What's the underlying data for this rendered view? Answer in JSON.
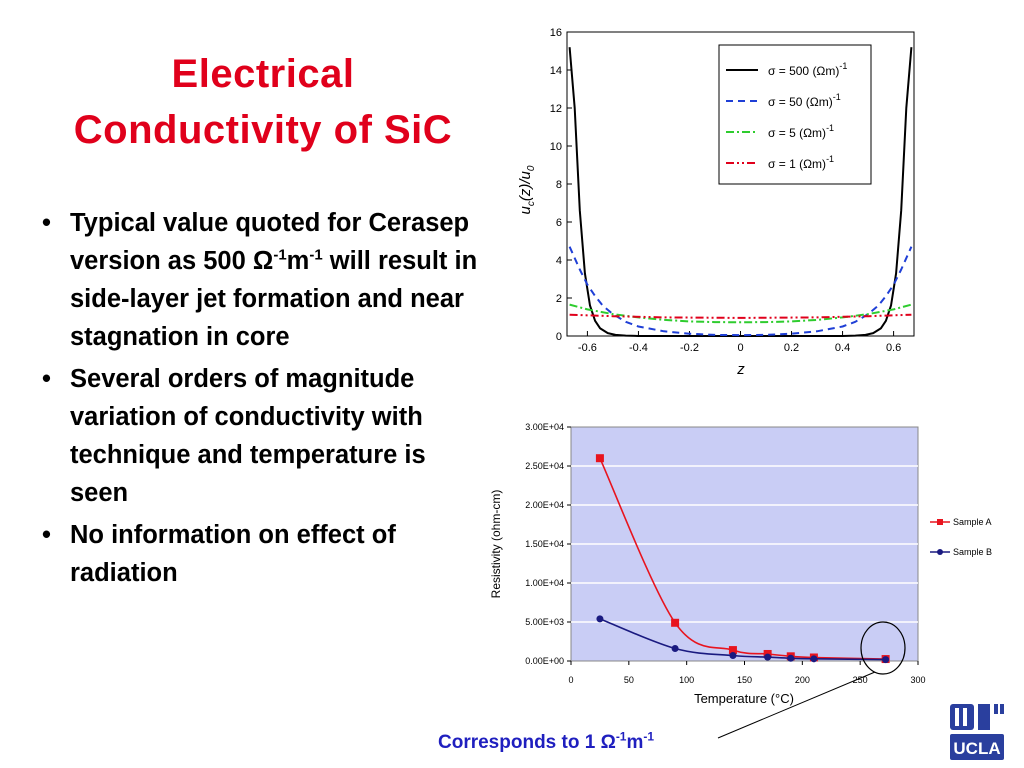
{
  "slide": {
    "title_line1": "Electrical",
    "title_line2": "Conductivity of SiC",
    "bullet1": {
      "text_a": "Typical value quoted for Cerasep version as 500 ",
      "omega": "Ω",
      "sup1": "-1",
      "m": "m",
      "sup2": "-1",
      "text_b": " will result in side-layer jet formation and near stagnation in core"
    },
    "bullet2": "Several orders of magnitude variation of conductivity with technique and temperature is seen",
    "bullet3": "No information on effect of radiation",
    "caption": {
      "text": "Corresponds to 1 ",
      "omega": "Ω",
      "sup1": "-1",
      "m": "m",
      "sup2": "-1"
    },
    "logo_alt": "UCLA logo"
  },
  "chart_data": [
    {
      "type": "line",
      "xlabel": "z",
      "ylabel": "u_c(z)/u_0",
      "xlim": [
        -0.68,
        0.68
      ],
      "ylim": [
        0,
        16
      ],
      "xticks": [
        -0.6,
        -0.4,
        -0.2,
        0,
        0.2,
        0.4,
        0.6
      ],
      "xtick_labels": [
        "-0.6",
        "-0.4",
        "-0.2",
        "0",
        "0.2",
        "0.4",
        "0.6"
      ],
      "yticks": [
        0,
        2,
        4,
        6,
        8,
        10,
        12,
        14,
        16
      ],
      "legend_position": "top-right",
      "series": [
        {
          "name": "σ = 500 (Ωm)-1",
          "legend_label": "σ = 500 (Ωm)",
          "legend_sup": "-1",
          "style": "solid",
          "color": "#000000",
          "x": [
            -0.67,
            -0.65,
            -0.63,
            -0.61,
            -0.59,
            -0.57,
            -0.55,
            -0.52,
            -0.49,
            -0.45,
            -0.4,
            -0.3,
            -0.2,
            0,
            0.2,
            0.3,
            0.4,
            0.45,
            0.49,
            0.52,
            0.55,
            0.57,
            0.59,
            0.61,
            0.63,
            0.65,
            0.67
          ],
          "y": [
            15.2,
            12.0,
            6.6,
            3.3,
            1.6,
            0.8,
            0.4,
            0.15,
            0.06,
            0.02,
            0.0,
            0.0,
            0.0,
            0.0,
            0.0,
            0.0,
            0.0,
            0.02,
            0.06,
            0.15,
            0.4,
            0.8,
            1.6,
            3.3,
            6.6,
            12.0,
            15.2
          ]
        },
        {
          "name": "σ = 50 (Ωm)-1",
          "legend_label": "σ =   50 (Ωm)",
          "legend_sup": "-1",
          "style": "dashed",
          "color": "#1f3fd6",
          "x": [
            -0.67,
            -0.63,
            -0.6,
            -0.57,
            -0.54,
            -0.5,
            -0.45,
            -0.4,
            -0.3,
            -0.2,
            -0.1,
            0,
            0.1,
            0.2,
            0.3,
            0.4,
            0.45,
            0.5,
            0.54,
            0.57,
            0.6,
            0.63,
            0.67
          ],
          "y": [
            4.7,
            3.5,
            2.7,
            2.1,
            1.6,
            1.15,
            0.75,
            0.5,
            0.25,
            0.12,
            0.06,
            0.05,
            0.06,
            0.12,
            0.25,
            0.5,
            0.75,
            1.15,
            1.6,
            2.1,
            2.7,
            3.5,
            4.7
          ]
        },
        {
          "name": "σ = 5 (Ωm)-1",
          "legend_label": "σ =    5 (Ωm)",
          "legend_sup": "-1",
          "style": "dashdot",
          "color": "#2ecc2e",
          "x": [
            -0.67,
            -0.6,
            -0.5,
            -0.4,
            -0.3,
            -0.2,
            -0.1,
            0,
            0.1,
            0.2,
            0.3,
            0.4,
            0.5,
            0.6,
            0.67
          ],
          "y": [
            1.65,
            1.4,
            1.15,
            0.98,
            0.85,
            0.77,
            0.73,
            0.72,
            0.73,
            0.77,
            0.85,
            0.98,
            1.15,
            1.4,
            1.65
          ]
        },
        {
          "name": "σ = 1 (Ωm)-1",
          "legend_label": "σ =     1 (Ωm)",
          "legend_sup": "-1",
          "style": "dashdotdot",
          "color": "#e0001b",
          "x": [
            -0.67,
            -0.5,
            -0.3,
            0,
            0.3,
            0.5,
            0.67
          ],
          "y": [
            1.12,
            1.04,
            0.98,
            0.95,
            0.98,
            1.04,
            1.12
          ]
        }
      ]
    },
    {
      "type": "line",
      "xlabel": "Temperature (°C)",
      "ylabel": "Resistivity (ohm-cm)",
      "xlim": [
        0,
        300
      ],
      "ylim": [
        0,
        30000
      ],
      "xticks": [
        0,
        50,
        100,
        150,
        200,
        250,
        300
      ],
      "xtick_labels": [
        "0",
        "50",
        "100",
        "150",
        "200",
        "250",
        "300"
      ],
      "yticks": [
        0,
        5000,
        10000,
        15000,
        20000,
        25000,
        30000
      ],
      "ytick_labels": [
        "0.00E+00",
        "5.00E+03",
        "1.00E+04",
        "1.50E+04",
        "2.00E+04",
        "2.50E+04",
        "3.00E+04"
      ],
      "legend_position": "right",
      "plot_background": "#c9cdf5",
      "series": [
        {
          "name": "Sample A",
          "color": "#e8141e",
          "marker": "square",
          "x": [
            25,
            90,
            140,
            170,
            190,
            210,
            272
          ],
          "y": [
            26000,
            4900,
            1400,
            900,
            600,
            450,
            250
          ]
        },
        {
          "name": "Sample B",
          "color": "#1a1a80",
          "marker": "circle",
          "x": [
            25,
            90,
            140,
            170,
            190,
            210,
            272
          ],
          "y": [
            5400,
            1600,
            700,
            500,
            350,
            280,
            180
          ]
        }
      ]
    }
  ]
}
